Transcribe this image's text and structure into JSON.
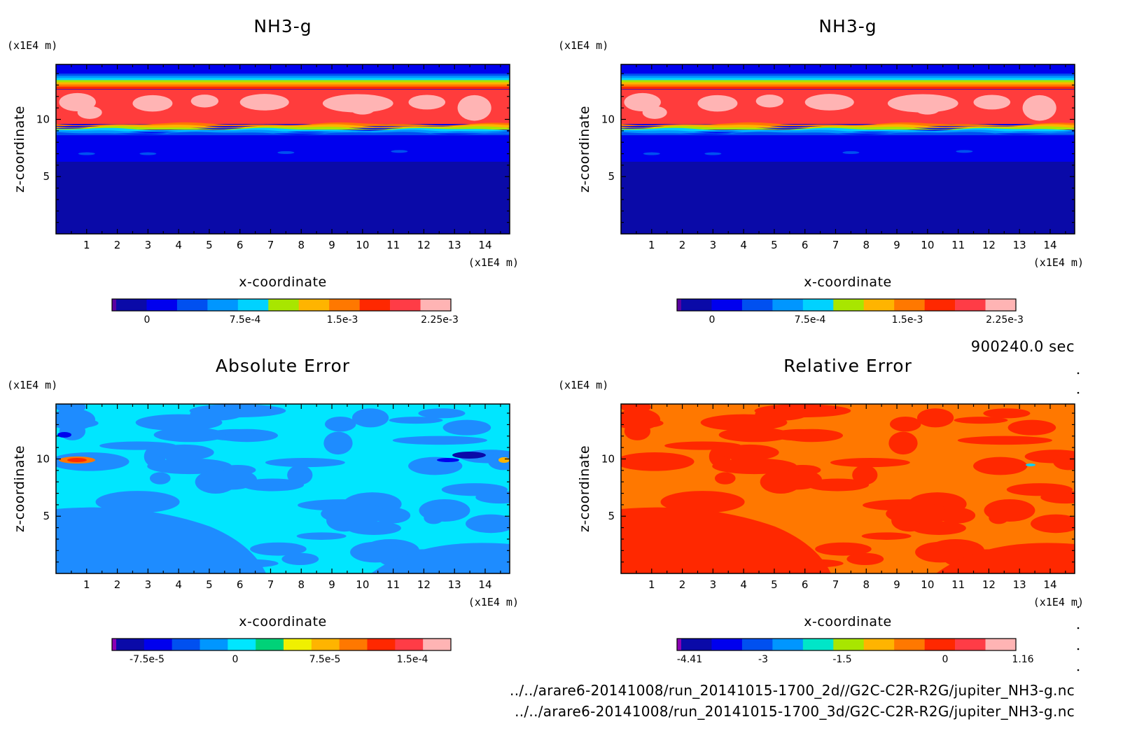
{
  "figure": {
    "timestamp": "900240.0 sec",
    "files": [
      "../../arare6-20141008/run_20141015-1700_2d//G2C-C2R-R2G/jupiter_NH3-g.nc",
      "../../arare6-20141008/run_20141015-1700_3d/G2C-C2R-R2G/jupiter_NH3-g.nc"
    ]
  },
  "chart_data": [
    {
      "type": "heatmap",
      "title": "NH3-g",
      "xlabel": "x-coordinate",
      "ylabel": "z-coordinate",
      "x_unit": "(x1E4 m)",
      "y_unit": "(x1E4 m)",
      "xlim": [
        0,
        14.8
      ],
      "ylim": [
        0,
        14.8
      ],
      "xticks": [
        "1",
        "2",
        "3",
        "4",
        "5",
        "6",
        "7",
        "8",
        "9",
        "10",
        "11",
        "12",
        "13",
        "14"
      ],
      "yticks": [
        "5",
        "10"
      ],
      "colorbar": {
        "ticks": [
          "0",
          "7.5e-4",
          "1.5e-3",
          "2.25e-3"
        ],
        "colors": [
          "#5a00a0",
          "#0a0aa8",
          "#0000ee",
          "#0050f0",
          "#0096ff",
          "#00d2ff",
          "#a8e600",
          "#ffb400",
          "#ff7800",
          "#ff2800",
          "#ff3c46",
          "#ffb4b4"
        ]
      },
      "layers": [
        {
          "z_range": [
            0,
            6.3
          ],
          "value": "<0",
          "color": "#0a0aa8"
        },
        {
          "z_range": [
            6.3,
            9.6
          ],
          "value": "0 ~ 3.75e-4",
          "color": "#0000ee"
        },
        {
          "z_range": [
            9.6,
            12.6
          ],
          "value": "2.0e-3 ~ 2.25e-3",
          "color": "#ff3c3c"
        },
        {
          "z_range": [
            12.6,
            14.8
          ],
          "value": "decreasing to 0",
          "color": "#0000ee"
        }
      ]
    },
    {
      "type": "heatmap",
      "title": "NH3-g",
      "xlabel": "x-coordinate",
      "ylabel": "z-coordinate",
      "x_unit": "(x1E4 m)",
      "y_unit": "(x1E4 m)",
      "xlim": [
        0,
        14.8
      ],
      "ylim": [
        0,
        14.8
      ],
      "xticks": [
        "1",
        "2",
        "3",
        "4",
        "5",
        "6",
        "7",
        "8",
        "9",
        "10",
        "11",
        "12",
        "13",
        "14"
      ],
      "yticks": [
        "5",
        "10"
      ],
      "colorbar": {
        "ticks": [
          "0",
          "7.5e-4",
          "1.5e-3",
          "2.25e-3"
        ],
        "colors": [
          "#5a00a0",
          "#0a0aa8",
          "#0000ee",
          "#0050f0",
          "#0096ff",
          "#00d2ff",
          "#a8e600",
          "#ffb400",
          "#ff7800",
          "#ff2800",
          "#ff3c46",
          "#ffb4b4"
        ]
      },
      "layers": [
        {
          "z_range": [
            0,
            6.3
          ],
          "value": "<0",
          "color": "#0a0aa8"
        },
        {
          "z_range": [
            6.3,
            9.6
          ],
          "value": "0 ~ 3.75e-4",
          "color": "#0000ee"
        },
        {
          "z_range": [
            9.6,
            12.6
          ],
          "value": "2.0e-3 ~ 2.25e-3",
          "color": "#ff3c3c"
        },
        {
          "z_range": [
            12.6,
            14.8
          ],
          "value": "decreasing to 0",
          "color": "#0000ee"
        }
      ]
    },
    {
      "type": "heatmap",
      "title": "Absolute Error",
      "xlabel": "x-coordinate",
      "ylabel": "z-coordinate",
      "x_unit": "(x1E4 m)",
      "y_unit": "(x1E4 m)",
      "xlim": [
        0,
        14.8
      ],
      "ylim": [
        0,
        14.8
      ],
      "xticks": [
        "1",
        "2",
        "3",
        "4",
        "5",
        "6",
        "7",
        "8",
        "9",
        "10",
        "11",
        "12",
        "13",
        "14"
      ],
      "yticks": [
        "5",
        "10"
      ],
      "colorbar": {
        "ticks": [
          "-7.5e-5",
          "0",
          "7.5e-5",
          "1.5e-4"
        ],
        "colors": [
          "#8c00b4",
          "#0a0aa8",
          "#0000ee",
          "#0050f0",
          "#0096ff",
          "#00e6ff",
          "#00d278",
          "#f0f000",
          "#ffb400",
          "#ff7800",
          "#ff2800",
          "#ff3c46",
          "#ffb4b4"
        ]
      },
      "background_value": "0 ~ 1.5e-5",
      "background_color": "#00e6ff",
      "patch_value": "-1.5e-5 ~ 0",
      "patch_color": "#1e8cff"
    },
    {
      "type": "heatmap",
      "title": "Relative Error",
      "xlabel": "x-coordinate",
      "ylabel": "z-coordinate",
      "x_unit": "(x1E4 m)",
      "y_unit": "(x1E4 m)",
      "xlim": [
        0,
        14.8
      ],
      "ylim": [
        0,
        14.8
      ],
      "xticks": [
        "1",
        "2",
        "3",
        "4",
        "5",
        "6",
        "7",
        "8",
        "9",
        "10",
        "11",
        "12",
        "13",
        "14"
      ],
      "yticks": [
        "5",
        "10"
      ],
      "colorbar": {
        "ticks": [
          "-4.41",
          "-3",
          "-1.5",
          "0",
          "1.16"
        ],
        "colors": [
          "#8c00b4",
          "#0a0aa8",
          "#0000ee",
          "#0050f0",
          "#0096ff",
          "#00e6c8",
          "#a8e600",
          "#ffb400",
          "#ff7800",
          "#ff2800",
          "#ff3c46",
          "#ffb4b4"
        ]
      },
      "background_value": "-0.3 ~ 0",
      "background_color": "#ff7800",
      "patch_value": "0 ~ 0.3",
      "patch_color": "#ff2800"
    }
  ]
}
